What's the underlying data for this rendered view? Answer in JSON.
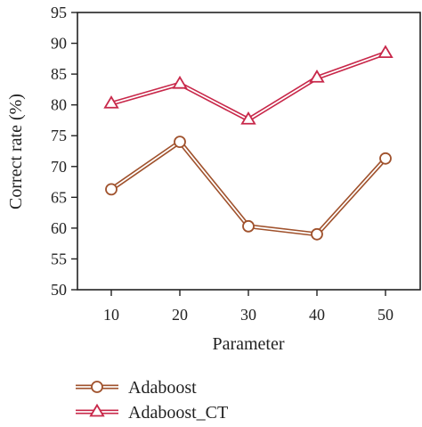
{
  "chart_data": {
    "type": "line",
    "x": [
      10,
      20,
      30,
      40,
      50
    ],
    "xlabel": "Parameter",
    "ylabel": "Correct rate (%)",
    "ylim": [
      50,
      95
    ],
    "y_ticks": [
      50,
      55,
      60,
      65,
      70,
      75,
      80,
      85,
      90,
      95
    ],
    "x_ticks": [
      10,
      20,
      30,
      40,
      50
    ],
    "grid": false,
    "legend_position": "bottom",
    "series": [
      {
        "name": "Adaboost",
        "values": [
          66.3,
          74.0,
          60.3,
          59.0,
          71.3
        ],
        "marker": "circle",
        "color": "#a0522d"
      },
      {
        "name": "Adaboost_CT",
        "values": [
          80.2,
          83.4,
          77.6,
          84.4,
          88.4
        ],
        "marker": "triangle",
        "color": "#c8284a"
      }
    ]
  }
}
